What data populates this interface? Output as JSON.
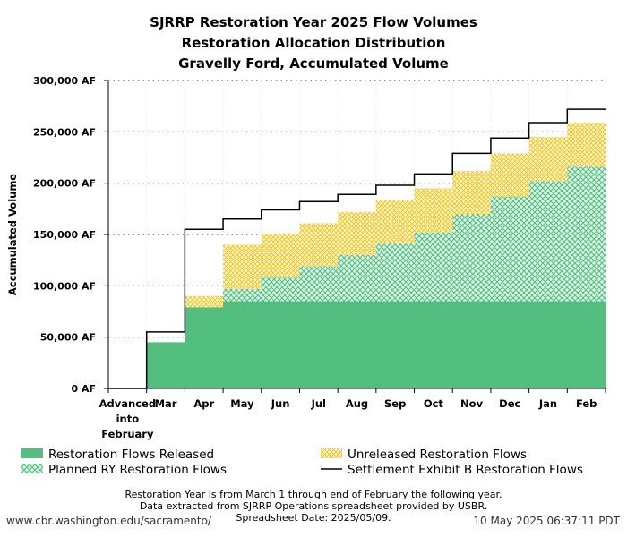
{
  "chart_data": {
    "type": "area",
    "step": true,
    "title": [
      "SJRRP Restoration Year 2025 Flow Volumes",
      "Restoration Allocation Distribution",
      "Gravelly Ford, Accumulated Volume"
    ],
    "xlabel": "",
    "ylabel": "Accumulated Volume",
    "ylim": [
      0,
      300000
    ],
    "yticks": [
      0,
      50000,
      100000,
      150000,
      200000,
      250000,
      300000
    ],
    "ytick_labels": [
      "0 AF",
      "50,000 AF",
      "100,000 AF",
      "150,000 AF",
      "200,000 AF",
      "250,000 AF",
      "300,000 AF"
    ],
    "categories": [
      "Advanced into February",
      "Mar",
      "Apr",
      "May",
      "Jun",
      "Jul",
      "Aug",
      "Sep",
      "Oct",
      "Nov",
      "Dec",
      "Jan",
      "Feb"
    ],
    "category_labels": [
      [
        "Advanced",
        "into",
        "February"
      ],
      [
        "Mar"
      ],
      [
        "Apr"
      ],
      [
        "May"
      ],
      [
        "Jun"
      ],
      [
        "Jul"
      ],
      [
        "Aug"
      ],
      [
        "Sep"
      ],
      [
        "Oct"
      ],
      [
        "Nov"
      ],
      [
        "Dec"
      ],
      [
        "Jan"
      ],
      [
        "Feb"
      ]
    ],
    "grid": "y-dotted",
    "series": [
      {
        "name": "Restoration Flows Released",
        "style": "solid",
        "color": "#52be80",
        "values": [
          0,
          45000,
          79000,
          85000,
          85000,
          85000,
          85000,
          85000,
          85000,
          85000,
          85000,
          85000,
          85000
        ]
      },
      {
        "name": "Planned RY Restoration Flows",
        "style": "crosshatch",
        "color": "#52be80",
        "values": [
          0,
          45000,
          79000,
          97000,
          108000,
          119000,
          130000,
          141000,
          152000,
          170000,
          187000,
          202000,
          216000
        ]
      },
      {
        "name": "Unreleased Restoration Flows",
        "style": "dotted-hatch",
        "color": "#f0c419",
        "values": [
          0,
          45000,
          90000,
          140000,
          151000,
          161000,
          172000,
          183000,
          195000,
          212000,
          229000,
          245000,
          259000
        ]
      },
      {
        "name": "Settlement Exhibit B Restoration Flows",
        "style": "line",
        "color": "#000000",
        "values": [
          0,
          55000,
          155000,
          165000,
          174000,
          182000,
          189000,
          198000,
          209000,
          229000,
          244000,
          259000,
          272000
        ]
      }
    ],
    "legend": "bottom",
    "legend_order": [
      0,
      2,
      1,
      3
    ],
    "notes": [
      "Restoration Year is from March 1 through end of February the following year.",
      "Data extracted from SJRRP Operations spreadsheet provided by USBR.",
      "Spreadsheet Date: 2025/05/09."
    ],
    "footer_left": "www.cbr.washington.edu/sacramento/",
    "footer_right": "10 May 2025 06:37:11 PDT"
  }
}
